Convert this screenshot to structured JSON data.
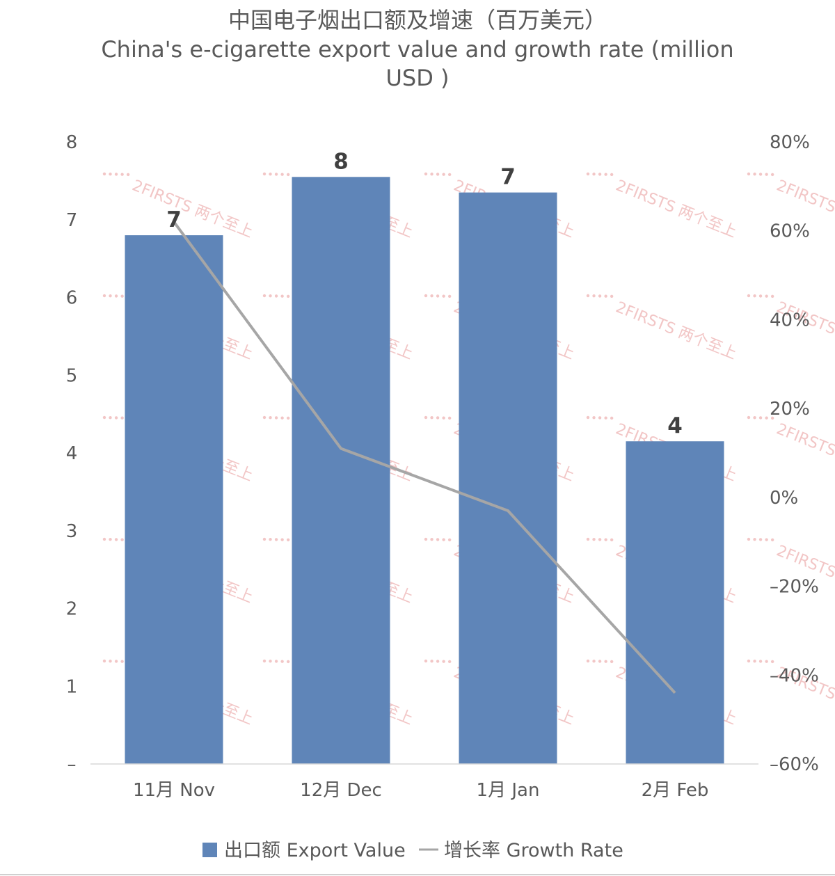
{
  "chart_data": {
    "type": "bar",
    "title": "中国电子烟出口额及增速（百万美元）",
    "subtitle_lines": [
      "China's e-cigarette export value and growth rate (million",
      "USD )"
    ],
    "categories": [
      "11月 Nov",
      "12月 Dec",
      "1月 Jan",
      "2月 Feb"
    ],
    "series": [
      {
        "name": "出口额 Export Value",
        "kind": "bar",
        "axis": "left",
        "color": "#5f85b8",
        "values": [
          6.8,
          7.55,
          7.35,
          4.15
        ],
        "data_labels": [
          "7",
          "8",
          "7",
          "4"
        ]
      },
      {
        "name": "增长率 Growth Rate",
        "kind": "line",
        "axis": "right",
        "color": "#a6a6a6",
        "values": [
          62,
          11,
          -3,
          -44
        ]
      }
    ],
    "y_left": {
      "min": 0,
      "max": 8,
      "ticks": [
        8,
        7,
        6,
        5,
        4,
        3,
        2,
        1,
        0
      ],
      "tick_labels": [
        "8",
        "7",
        "6",
        "5",
        "4",
        "3",
        "2",
        "1",
        "–"
      ]
    },
    "y_right": {
      "min": -60,
      "max": 80,
      "ticks": [
        80,
        60,
        40,
        20,
        0,
        -20,
        -40,
        -60
      ],
      "tick_labels": [
        "80%",
        "60%",
        "40%",
        "20%",
        "0%",
        "–20%",
        "–40%",
        "–60%"
      ]
    },
    "grid": false,
    "legend_position": "bottom"
  },
  "watermark": {
    "text": "2FIRSTS 两个至上"
  }
}
